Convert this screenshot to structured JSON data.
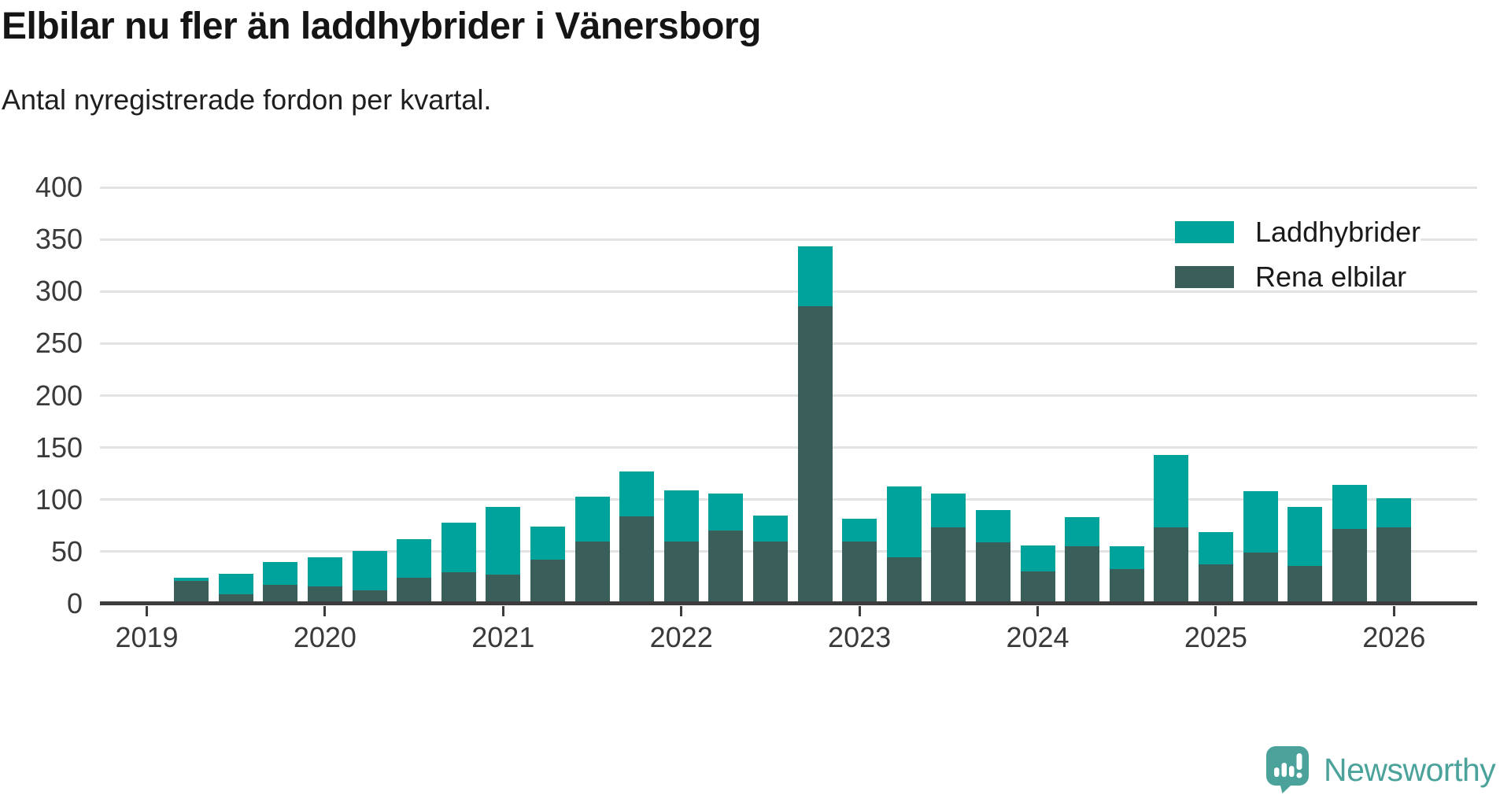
{
  "header": {
    "title": "Elbilar nu fler än laddhybrider i Vänersborg",
    "subtitle": "Antal nyregistrerade fordon per kvartal."
  },
  "colors": {
    "laddhybrider": "#00A39B",
    "rena_elbilar": "#3A5F5B",
    "axis": "#3C3C3C",
    "gridline": "#E3E3E3",
    "tick_text": "#3A3A3A",
    "title_text": "#151515",
    "logo": "#4AA29B"
  },
  "chart_data": {
    "type": "bar",
    "stacked": true,
    "title": "Elbilar nu fler än laddhybrider i Vänersborg",
    "subtitle": "Antal nyregistrerade fordon per kvartal.",
    "grid": true,
    "legend_position": "top-right",
    "ylim": [
      0,
      400
    ],
    "y_ticks": [
      0,
      50,
      100,
      150,
      200,
      250,
      300,
      350,
      400
    ],
    "x_tick_labels": [
      "2019",
      "2020",
      "2021",
      "2022",
      "2023",
      "2024",
      "2025",
      "2026"
    ],
    "categories": [
      "2019 Q1",
      "2019 Q2",
      "2019 Q3",
      "2019 Q4",
      "2020 Q1",
      "2020 Q2",
      "2020 Q3",
      "2020 Q4",
      "2021 Q1",
      "2021 Q2",
      "2021 Q3",
      "2021 Q4",
      "2022 Q1",
      "2022 Q2",
      "2022 Q3",
      "2022 Q4",
      "2023 Q1",
      "2023 Q2",
      "2023 Q3",
      "2023 Q4",
      "2024 Q1",
      "2024 Q2",
      "2024 Q3",
      "2024 Q4",
      "2025 Q1",
      "2025 Q2",
      "2025 Q3",
      "2025 Q4"
    ],
    "series": [
      {
        "name": "Laddhybrider",
        "color": "#00A39B",
        "values": [
          3,
          20,
          22,
          28,
          38,
          37,
          48,
          65,
          32,
          43,
          43,
          49,
          36,
          25,
          57,
          22,
          68,
          33,
          31,
          25,
          28,
          22,
          70,
          31,
          59,
          57,
          42,
          28
        ]
      },
      {
        "name": "Rena elbilar",
        "color": "#3A5F5B",
        "values": [
          22,
          9,
          18,
          17,
          13,
          25,
          30,
          28,
          42,
          60,
          84,
          60,
          70,
          60,
          286,
          60,
          45,
          73,
          59,
          31,
          55,
          33,
          73,
          38,
          49,
          36,
          72,
          73
        ]
      }
    ]
  },
  "legend": {
    "items": [
      {
        "label": "Laddhybrider",
        "color": "#00A39B"
      },
      {
        "label": "Rena elbilar",
        "color": "#3A5F5B"
      }
    ]
  },
  "footer": {
    "brand": "Newsworthy"
  }
}
